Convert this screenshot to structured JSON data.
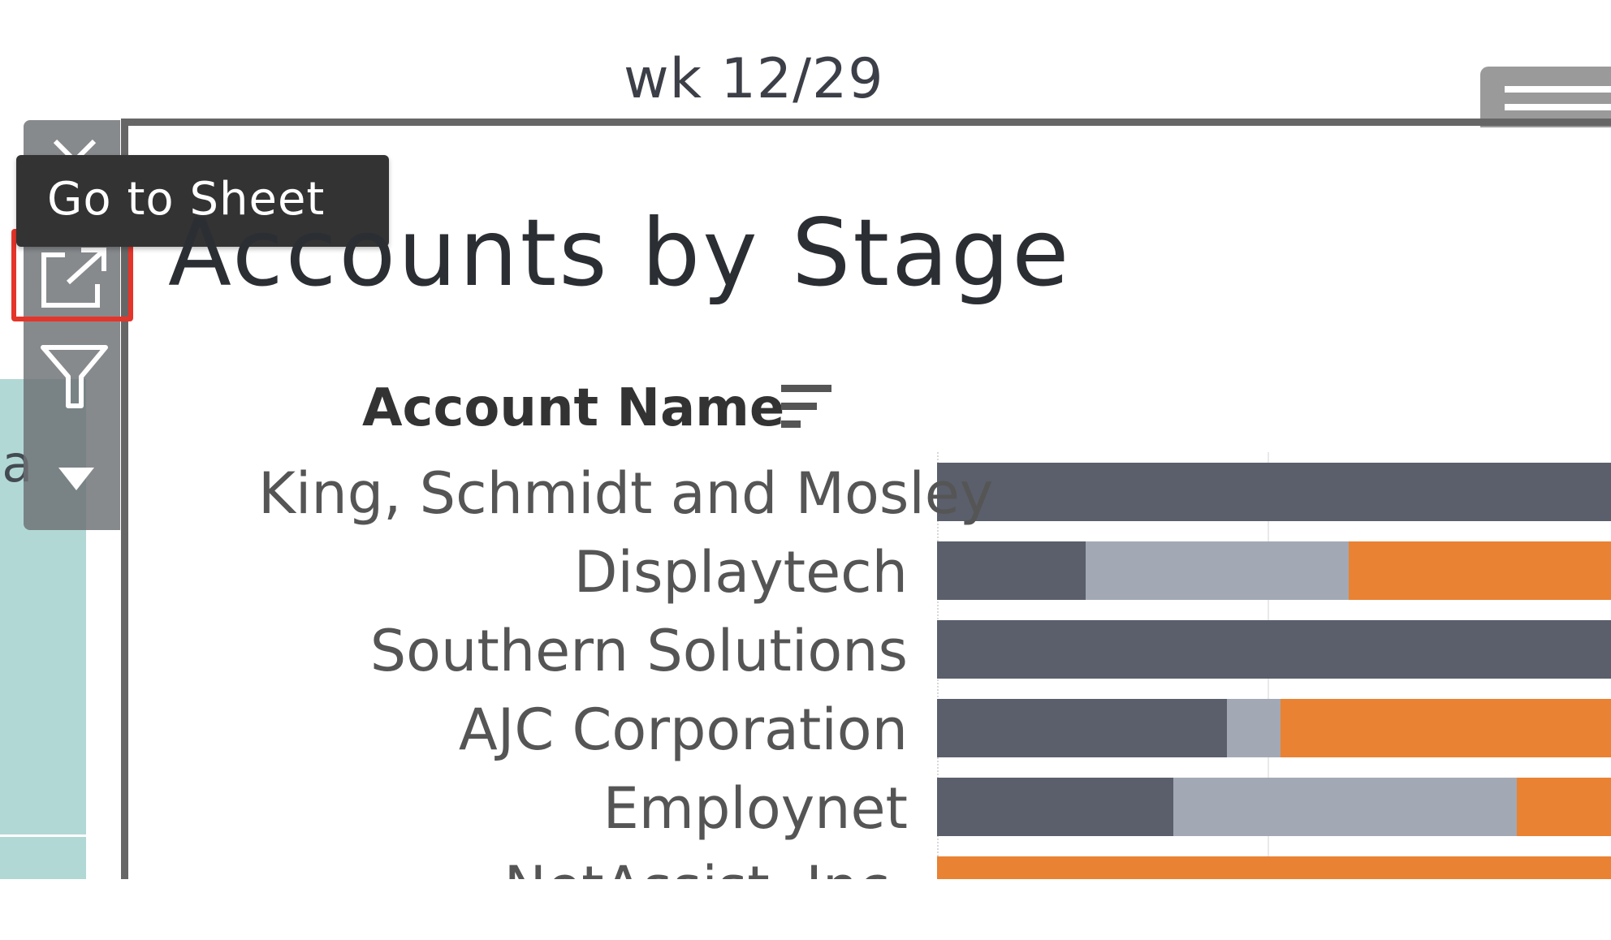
{
  "header": {
    "week_label": "wk 12/29"
  },
  "left_panel": {
    "truncated_text": "sa"
  },
  "toolbar": {
    "close_icon": "close-icon",
    "goto_icon": "external-link-icon",
    "filter_icon": "filter-icon",
    "dropdown_icon": "caret-down-icon",
    "tooltip": "Go to Sheet",
    "highlight_color": "#e5342a"
  },
  "sheet": {
    "title": "Accounts by Stage",
    "column_header": "Account Name",
    "sort_icon": "sort-descending-icon"
  },
  "chart_data": {
    "type": "bar",
    "orientation": "horizontal-stacked",
    "categories": [
      "King, Schmidt and Mosley",
      "Displaytech",
      "Southern Solutions",
      "AJC Corporation",
      "Employnet",
      "NetAssist, Inc."
    ],
    "segment_colors": [
      "#5a5f6b",
      "#a3a9b4",
      "#e98233"
    ],
    "series": [
      {
        "values": [
          1.0,
          0.22,
          1.0,
          0.43,
          0.35,
          0.0
        ]
      },
      {
        "values": [
          0.0,
          0.39,
          0.0,
          0.08,
          0.51,
          0.0
        ]
      },
      {
        "values": [
          0.0,
          0.39,
          0.0,
          0.49,
          0.14,
          1.0
        ]
      }
    ]
  }
}
